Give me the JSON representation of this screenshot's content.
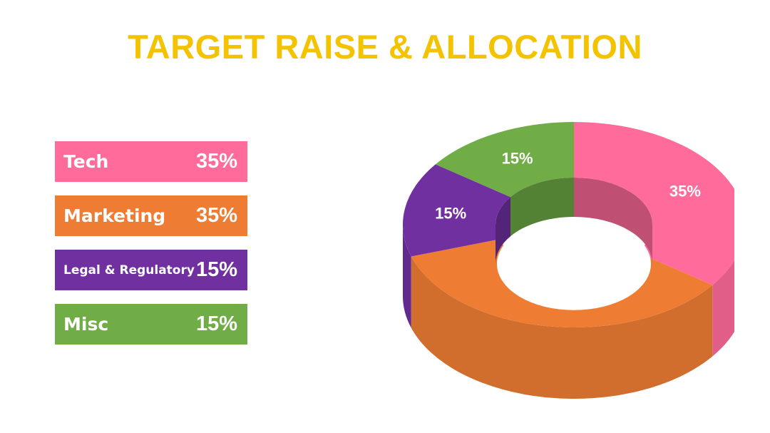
{
  "chart_data": {
    "type": "pie",
    "style": "3d-donut",
    "title": "TARGET RAISE & ALLOCATION",
    "categories": [
      "Tech",
      "Marketing",
      "Legal & Regulatory",
      "Misc"
    ],
    "values": [
      35,
      35,
      15,
      15
    ],
    "value_labels": [
      "35%",
      "35%",
      "15%",
      "15%"
    ],
    "colors": [
      "#ff6b9a",
      "#ee7d33",
      "#7030a0",
      "#70ad47"
    ],
    "legend_placement": "left"
  }
}
